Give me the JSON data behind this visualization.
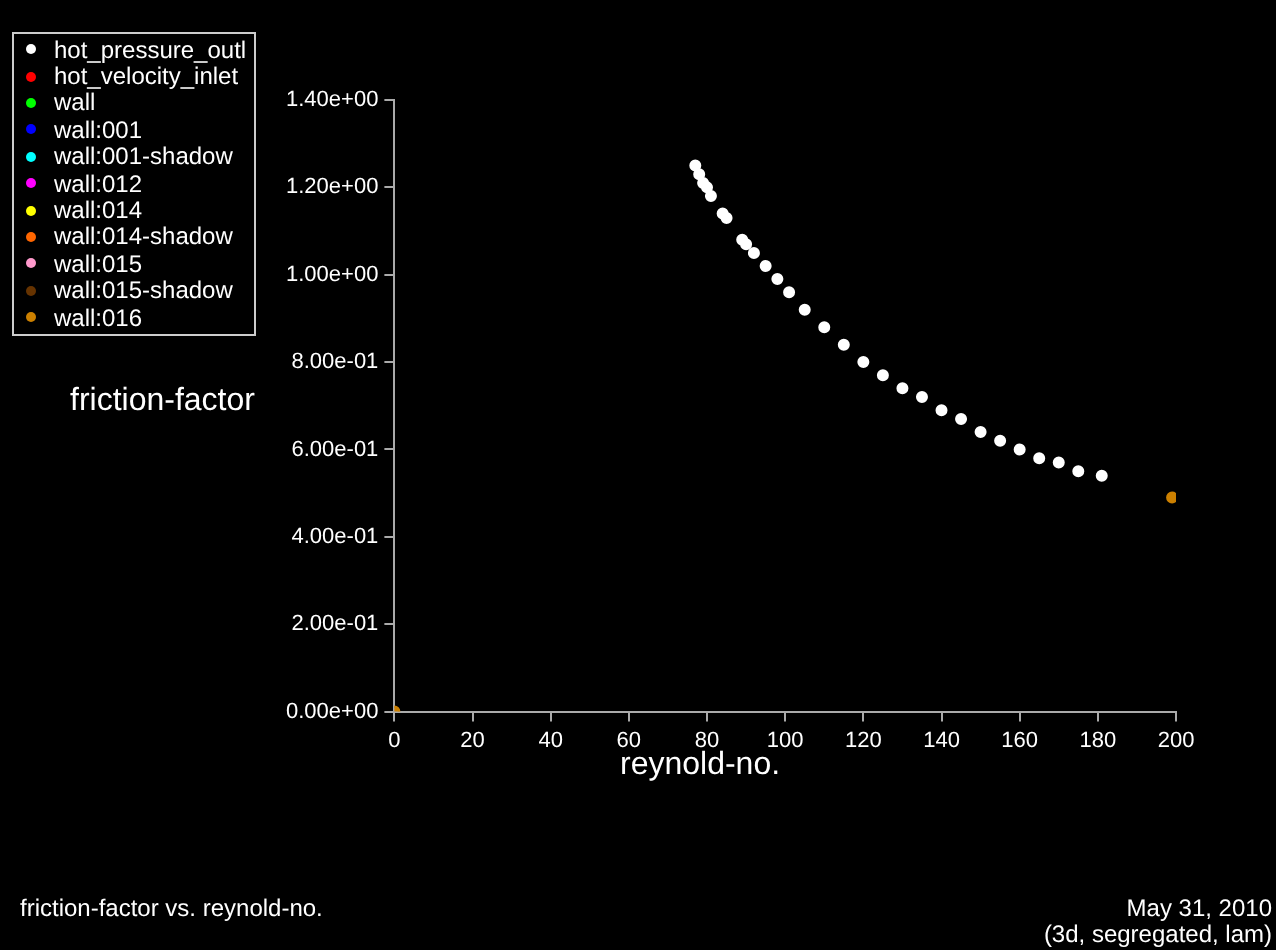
{
  "chart_data": {
    "type": "scatter",
    "xlabel": "reynold-no.",
    "ylabel": "friction-factor",
    "annotations": [
      "friction-factor vs. reynold-no.",
      "May 31, 2010",
      "(3d, segregated, lam)"
    ],
    "xlim": [
      0,
      200
    ],
    "xticks": [
      0,
      20,
      40,
      60,
      80,
      100,
      120,
      140,
      160,
      180,
      200
    ],
    "ylim": [
      0,
      1.4
    ],
    "yticks": [
      {
        "value": 0,
        "label": "0.00e+00"
      },
      {
        "value": 0.2,
        "label": "2.00e-01"
      },
      {
        "value": 0.4,
        "label": "4.00e-01"
      },
      {
        "value": 0.6,
        "label": "6.00e-01"
      },
      {
        "value": 0.8,
        "label": "8.00e-01"
      },
      {
        "value": 1.0,
        "label": "1.00e+00"
      },
      {
        "value": 1.2,
        "label": "1.20e+00"
      },
      {
        "value": 1.4,
        "label": "1.40e+00"
      }
    ],
    "grid": false,
    "legend": "top left",
    "marker": "circle",
    "series": [
      {
        "name": "hot_pressure_outl",
        "color": "#ffffff",
        "x": [
          77,
          78,
          79,
          80,
          81,
          84,
          85,
          89,
          90,
          92,
          95,
          98,
          101,
          105,
          110,
          115,
          120,
          125,
          130,
          135,
          140,
          145,
          150,
          155,
          160,
          165,
          170,
          175,
          181
        ],
        "values": [
          1.25,
          1.23,
          1.21,
          1.2,
          1.18,
          1.14,
          1.13,
          1.08,
          1.07,
          1.05,
          1.02,
          0.99,
          0.96,
          0.92,
          0.88,
          0.84,
          0.8,
          0.77,
          0.74,
          0.72,
          0.69,
          0.67,
          0.64,
          0.62,
          0.6,
          0.58,
          0.57,
          0.55,
          0.54
        ]
      },
      {
        "name": "hot_velocity_inlet",
        "color": "#ff0000"
      },
      {
        "name": "wall",
        "color": "#00ff00"
      },
      {
        "name": "wall:001",
        "color": "#0000ff"
      },
      {
        "name": "wall:001-shadow",
        "color": "#00ffff"
      },
      {
        "name": "wall:012",
        "color": "#ff00ff"
      },
      {
        "name": "wall:014",
        "color": "#ffff00"
      },
      {
        "name": "wall:014-shadow",
        "color": "#ff6600"
      },
      {
        "name": "wall:015",
        "color": "#ff99cc"
      },
      {
        "name": "wall:015-shadow",
        "color": "#663300"
      },
      {
        "name": "wall:016",
        "color": "#cc8000",
        "x": [
          0,
          199
        ],
        "values": [
          0,
          0.49
        ]
      }
    ]
  }
}
